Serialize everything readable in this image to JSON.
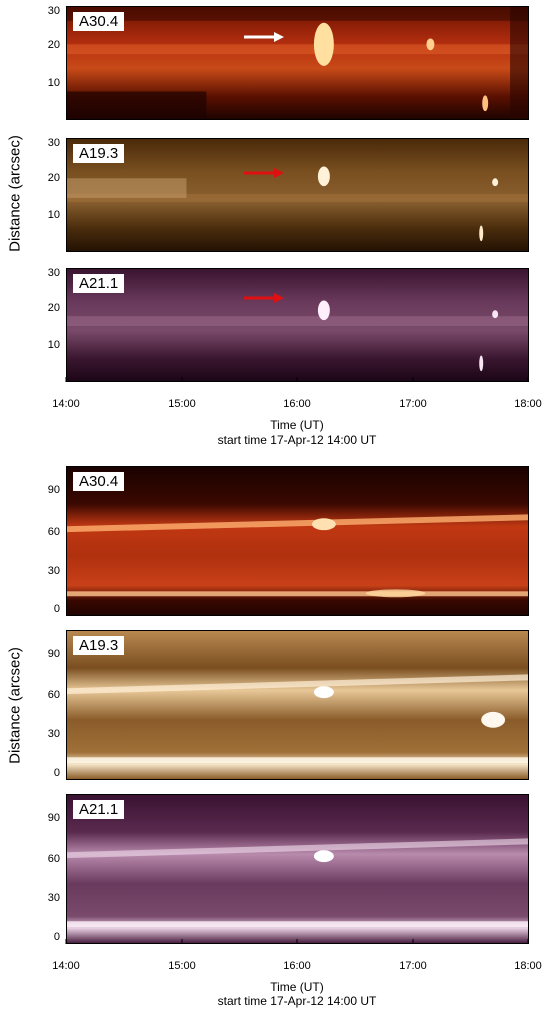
{
  "top_figure": {
    "ylabel": "Distance (arcsec)",
    "panels": [
      {
        "label": "A30.4",
        "yticks": [
          "30",
          "20",
          "10"
        ]
      },
      {
        "label": "A19.3",
        "yticks": [
          "30",
          "20",
          "10"
        ]
      },
      {
        "label": "A21.1",
        "yticks": [
          "30",
          "20",
          "10"
        ]
      }
    ],
    "xticks": [
      "14:00",
      "15:00",
      "16:00",
      "17:00",
      "18:00"
    ],
    "xlabel": "Time (UT)",
    "subtitle": "start time 17-Apr-12 14:00 UT",
    "arrow_colors": [
      "#ffffff",
      "#e01010",
      "#e01010"
    ]
  },
  "bottom_figure": {
    "ylabel": "Distance (arcsec)",
    "panels": [
      {
        "label": "A30.4",
        "yticks": [
          "90",
          "60",
          "30",
          "0"
        ]
      },
      {
        "label": "A19.3",
        "yticks": [
          "90",
          "60",
          "30",
          "0"
        ]
      },
      {
        "label": "A21.1",
        "yticks": [
          "90",
          "60",
          "30",
          "0"
        ]
      }
    ],
    "xticks": [
      "14:00",
      "15:00",
      "16:00",
      "17:00",
      "18:00"
    ],
    "xlabel": "Time (UT)",
    "subtitle": "start time 17-Apr-12 14:00 UT"
  },
  "colors": {
    "a304_dark": "#2a0500",
    "a304_mid": "#b03010",
    "a304_bright": "#ffb060",
    "a193_dark": "#2e1a05",
    "a193_mid": "#9a6a30",
    "a193_bright": "#f8e6c8",
    "a211_dark": "#200818",
    "a211_mid": "#6a3a5c",
    "a211_bright": "#e8d4e6"
  }
}
